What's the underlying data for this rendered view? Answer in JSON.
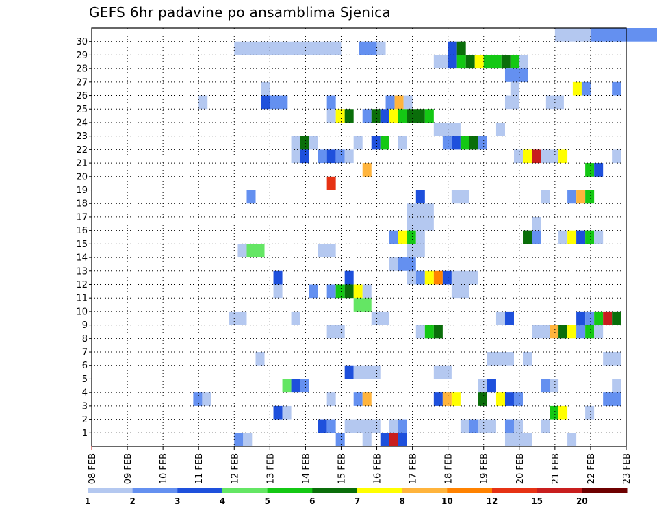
{
  "chart_data": {
    "type": "heatmap",
    "title": "GEFS 6hr padavine po ansamblima Sjenica",
    "xlabel": "",
    "ylabel": "",
    "x_ticks": [
      "08 FEB",
      "09 FEB",
      "10 FEB",
      "11 FEB",
      "12 FEB",
      "13 FEB",
      "14 FEB",
      "15 FEB",
      "16 FEB",
      "17 FEB",
      "18 FEB",
      "19 FEB",
      "20 FEB",
      "21 FEB",
      "22 FEB",
      "23 FEB"
    ],
    "y_ticks": [
      "1",
      "2",
      "3",
      "4",
      "5",
      "6",
      "7",
      "8",
      "9",
      "10",
      "11",
      "12",
      "13",
      "14",
      "15",
      "16",
      "17",
      "18",
      "19",
      "20",
      "21",
      "22",
      "23",
      "24",
      "25",
      "26",
      "27",
      "28",
      "29",
      "30"
    ],
    "members": 31,
    "grid": "dotted",
    "legend_placement": "bottom",
    "legend": {
      "labels": [
        "1",
        "2",
        "3",
        "4",
        "5",
        "6",
        "7",
        "8",
        "10",
        "12",
        "15",
        "20"
      ],
      "colors": [
        "#b4c8f0",
        "#6490f0",
        "#1e50dc",
        "#64e664",
        "#14c814",
        "#0a6e0a",
        "#ffff00",
        "#ffb43c",
        "#ff8200",
        "#e63214",
        "#c81e1e",
        "#6e0000"
      ]
    },
    "cells": [
      [
        30,
        21,
        30,
        22,
        1
      ],
      [
        30,
        22,
        30,
        23,
        2
      ],
      [
        30,
        23,
        30,
        24,
        2
      ],
      [
        30,
        24,
        30,
        25,
        5
      ],
      [
        30,
        25,
        30,
        26,
        5
      ],
      [
        30,
        26,
        30,
        27,
        2
      ],
      [
        30,
        27,
        30,
        28,
        1
      ],
      [
        29,
        12,
        29,
        13,
        1
      ],
      [
        29,
        13,
        29,
        15,
        1
      ],
      [
        29,
        15.5,
        29,
        16,
        2
      ],
      [
        29,
        16,
        29,
        16.25,
        1
      ],
      [
        29,
        18,
        29,
        18.25,
        3
      ],
      [
        29,
        18.25,
        29,
        18.5,
        6
      ],
      [
        28,
        17.6,
        28,
        18,
        1
      ],
      [
        28,
        18,
        28,
        18.25,
        3
      ],
      [
        28,
        18.25,
        28,
        18.5,
        5
      ],
      [
        28,
        18.5,
        28,
        18.75,
        6
      ],
      [
        28,
        18.75,
        28,
        19,
        7
      ],
      [
        28,
        19,
        28,
        19.5,
        5
      ],
      [
        28,
        19.5,
        28,
        19.75,
        6
      ],
      [
        28,
        19.75,
        28,
        20,
        5
      ],
      [
        28,
        20,
        28,
        20.25,
        1
      ],
      [
        27,
        19.6,
        27,
        20.25,
        2
      ],
      [
        26,
        12.75,
        26,
        13,
        1
      ],
      [
        26,
        19.75,
        26,
        20,
        1
      ],
      [
        26,
        21.5,
        26,
        21.75,
        7
      ],
      [
        26,
        21.75,
        26,
        22,
        2
      ],
      [
        26,
        22.6,
        26,
        22.85,
        2
      ],
      [
        25,
        11,
        25,
        11.25,
        1
      ],
      [
        25,
        12.75,
        25,
        13,
        3
      ],
      [
        25,
        13,
        25,
        13.5,
        2
      ],
      [
        25,
        14.6,
        25,
        14.85,
        2
      ],
      [
        25,
        16.25,
        25,
        16.5,
        2
      ],
      [
        25,
        16.5,
        25,
        16.75,
        8
      ],
      [
        25,
        16.75,
        25,
        17,
        1
      ],
      [
        25,
        19.6,
        25,
        20,
        1
      ],
      [
        25,
        20.75,
        25,
        21.25,
        1
      ],
      [
        24,
        14.6,
        24,
        14.85,
        1
      ],
      [
        24,
        14.85,
        24,
        15.1,
        7
      ],
      [
        24,
        15.1,
        24,
        15.35,
        6
      ],
      [
        24,
        15.6,
        24,
        15.85,
        2
      ],
      [
        24,
        15.85,
        24,
        16.1,
        6
      ],
      [
        24,
        16.1,
        24,
        16.35,
        3
      ],
      [
        24,
        16.35,
        24,
        16.6,
        7
      ],
      [
        24,
        16.6,
        24,
        16.85,
        5
      ],
      [
        24,
        16.85,
        24,
        17.35,
        6
      ],
      [
        24,
        17.35,
        24,
        17.6,
        5
      ],
      [
        23,
        17.6,
        23,
        18.35,
        1
      ],
      [
        23,
        19.35,
        23,
        19.6,
        1
      ],
      [
        22,
        13.6,
        22,
        13.85,
        1
      ],
      [
        22,
        13.85,
        22,
        14.1,
        6
      ],
      [
        22,
        14.1,
        22,
        14.35,
        1
      ],
      [
        22,
        15.35,
        22,
        15.6,
        1
      ],
      [
        22,
        15.85,
        22,
        16.1,
        3
      ],
      [
        22,
        16.1,
        22,
        16.35,
        5
      ],
      [
        22,
        16.6,
        22,
        16.85,
        1
      ],
      [
        22,
        17.85,
        22,
        18.1,
        2
      ],
      [
        22,
        18.1,
        22,
        18.35,
        3
      ],
      [
        22,
        18.35,
        22,
        18.6,
        5
      ],
      [
        22,
        18.6,
        22,
        18.85,
        6
      ],
      [
        22,
        18.85,
        22,
        19.1,
        2
      ],
      [
        21,
        13.6,
        21,
        13.85,
        1
      ],
      [
        21,
        13.85,
        21,
        14.1,
        3
      ],
      [
        21,
        14.35,
        21,
        14.6,
        2
      ],
      [
        21,
        14.6,
        21,
        14.85,
        3
      ],
      [
        21,
        14.85,
        21,
        15.1,
        2
      ],
      [
        21,
        15.1,
        21,
        15.35,
        1
      ],
      [
        21,
        19.85,
        21,
        20.1,
        1
      ],
      [
        21,
        20.1,
        21,
        20.35,
        7
      ],
      [
        21,
        20.35,
        21,
        20.6,
        11
      ],
      [
        21,
        20.6,
        21,
        21.1,
        1
      ],
      [
        21,
        21.1,
        21,
        21.35,
        7
      ],
      [
        21,
        22.6,
        21,
        22.85,
        1
      ],
      [
        20,
        15.6,
        20,
        15.85,
        8
      ],
      [
        20,
        21.85,
        20,
        22.1,
        5
      ],
      [
        20,
        22.1,
        20,
        22.35,
        3
      ],
      [
        19,
        14.6,
        19,
        14.85,
        10
      ],
      [
        18,
        12.35,
        18,
        12.6,
        2
      ],
      [
        18,
        17.1,
        18,
        17.35,
        3
      ],
      [
        18,
        18.1,
        18,
        18.6,
        1
      ],
      [
        18,
        20.6,
        18,
        20.85,
        1
      ],
      [
        18,
        21.35,
        18,
        21.6,
        2
      ],
      [
        18,
        21.6,
        18,
        21.85,
        8
      ],
      [
        18,
        21.85,
        18,
        22.1,
        5
      ],
      [
        17,
        16.85,
        17,
        17.6,
        1
      ],
      [
        16,
        16.85,
        16,
        17.6,
        1
      ],
      [
        16,
        20.35,
        16,
        20.6,
        1
      ],
      [
        15,
        16.35,
        15,
        16.6,
        2
      ],
      [
        15,
        16.6,
        15,
        16.85,
        7
      ],
      [
        15,
        16.85,
        15,
        17.1,
        5
      ],
      [
        15,
        17.1,
        15,
        17.35,
        1
      ],
      [
        15,
        20.1,
        15,
        20.35,
        6
      ],
      [
        15,
        20.35,
        15,
        20.6,
        2
      ],
      [
        15,
        21.1,
        15,
        21.35,
        1
      ],
      [
        15,
        21.35,
        15,
        21.6,
        7
      ],
      [
        15,
        21.6,
        15,
        21.85,
        3
      ],
      [
        15,
        21.85,
        15,
        22.1,
        5
      ],
      [
        15,
        22.1,
        15,
        22.35,
        1
      ],
      [
        14,
        12.1,
        14,
        12.35,
        1
      ],
      [
        14,
        12.35,
        14,
        12.85,
        4
      ],
      [
        14,
        14.35,
        14,
        14.85,
        1
      ],
      [
        14,
        16.85,
        14,
        17.35,
        1
      ],
      [
        13,
        16.35,
        13,
        16.6,
        1
      ],
      [
        13,
        16.6,
        13,
        17.1,
        2
      ],
      [
        12,
        13.1,
        12,
        13.35,
        3
      ],
      [
        12,
        15.1,
        12,
        15.35,
        3
      ],
      [
        12,
        16.85,
        12,
        17.1,
        1
      ],
      [
        12,
        17.1,
        12,
        17.35,
        2
      ],
      [
        12,
        17.35,
        12,
        17.6,
        7
      ],
      [
        12,
        17.6,
        12,
        17.85,
        9
      ],
      [
        12,
        17.85,
        12,
        18.1,
        3
      ],
      [
        12,
        18.1,
        12,
        18.85,
        1
      ],
      [
        11,
        13.1,
        11,
        13.35,
        1
      ],
      [
        11,
        14.1,
        11,
        14.35,
        2
      ],
      [
        11,
        14.6,
        11,
        14.85,
        2
      ],
      [
        11,
        14.85,
        11,
        15.1,
        5
      ],
      [
        11,
        15.1,
        11,
        15.35,
        6
      ],
      [
        11,
        15.35,
        11,
        15.6,
        7
      ],
      [
        11,
        15.6,
        11,
        15.85,
        1
      ],
      [
        11,
        18.1,
        11,
        18.6,
        1
      ],
      [
        10,
        15.35,
        10,
        15.85,
        4
      ],
      [
        9,
        11.85,
        9,
        12.35,
        1
      ],
      [
        9,
        13.6,
        9,
        13.85,
        1
      ],
      [
        9,
        15.85,
        9,
        16.35,
        1
      ],
      [
        9,
        19.35,
        9,
        19.6,
        1
      ],
      [
        9,
        19.6,
        9,
        19.85,
        3
      ],
      [
        9,
        21.6,
        9,
        21.85,
        3
      ],
      [
        9,
        21.85,
        9,
        22.1,
        2
      ],
      [
        9,
        22.1,
        9,
        22.35,
        5
      ],
      [
        9,
        22.35,
        9,
        22.6,
        11
      ],
      [
        9,
        22.6,
        9,
        22.85,
        6
      ],
      [
        8,
        14.6,
        8,
        15.1,
        1
      ],
      [
        8,
        17.1,
        8,
        17.35,
        1
      ],
      [
        8,
        17.35,
        8,
        17.6,
        5
      ],
      [
        8,
        17.6,
        8,
        17.85,
        6
      ],
      [
        8,
        20.35,
        8,
        20.85,
        1
      ],
      [
        8,
        20.85,
        8,
        21.1,
        8
      ],
      [
        8,
        21.1,
        8,
        21.35,
        6
      ],
      [
        8,
        21.35,
        8,
        21.6,
        7
      ],
      [
        8,
        21.6,
        8,
        21.85,
        2
      ],
      [
        8,
        21.85,
        8,
        22.1,
        5
      ],
      [
        8,
        22.1,
        8,
        22.35,
        1
      ],
      [
        6,
        12.6,
        6,
        12.85,
        1
      ],
      [
        6,
        19.1,
        6,
        19.85,
        1
      ],
      [
        6,
        20.1,
        6,
        20.35,
        1
      ],
      [
        6,
        22.35,
        6,
        22.85,
        1
      ],
      [
        5,
        15.1,
        5,
        15.35,
        3
      ],
      [
        5,
        15.35,
        5,
        16.1,
        1
      ],
      [
        5,
        17.6,
        5,
        18.1,
        1
      ],
      [
        4,
        13.35,
        4,
        13.6,
        4
      ],
      [
        4,
        13.6,
        4,
        13.85,
        3
      ],
      [
        4,
        13.85,
        4,
        14.1,
        2
      ],
      [
        4,
        18.85,
        4,
        19.1,
        1
      ],
      [
        4,
        19.1,
        4,
        19.35,
        3
      ],
      [
        4,
        20.6,
        4,
        20.85,
        2
      ],
      [
        4,
        20.85,
        4,
        21.1,
        1
      ],
      [
        4,
        22.6,
        4,
        22.85,
        1
      ],
      [
        3,
        10.85,
        3,
        11.1,
        2
      ],
      [
        3,
        11.1,
        3,
        11.35,
        1
      ],
      [
        3,
        14.6,
        3,
        14.85,
        1
      ],
      [
        3,
        15.35,
        3,
        15.6,
        2
      ],
      [
        3,
        15.6,
        3,
        15.85,
        8
      ],
      [
        3,
        17.6,
        3,
        17.85,
        3
      ],
      [
        3,
        17.85,
        3,
        18.1,
        8
      ],
      [
        3,
        18.1,
        3,
        18.35,
        7
      ],
      [
        3,
        18.85,
        3,
        19.1,
        6
      ],
      [
        3,
        19.35,
        3,
        19.6,
        7
      ],
      [
        3,
        19.6,
        3,
        19.85,
        3
      ],
      [
        3,
        19.85,
        3,
        20.1,
        2
      ],
      [
        3,
        22.35,
        3,
        22.85,
        2
      ],
      [
        2,
        13.1,
        2,
        13.35,
        3
      ],
      [
        2,
        13.35,
        2,
        13.6,
        1
      ],
      [
        2,
        20.85,
        2,
        21.1,
        5
      ],
      [
        2,
        21.1,
        2,
        21.35,
        7
      ],
      [
        2,
        21.85,
        2,
        22.1,
        1
      ],
      [
        1,
        14.35,
        1,
        14.6,
        3
      ],
      [
        1,
        14.6,
        1,
        14.85,
        2
      ],
      [
        1,
        15.1,
        1,
        16.1,
        1
      ],
      [
        1,
        16.35,
        1,
        16.6,
        1
      ],
      [
        1,
        16.6,
        1,
        16.85,
        2
      ],
      [
        1,
        18.35,
        1,
        18.6,
        1
      ],
      [
        1,
        18.6,
        1,
        18.85,
        2
      ],
      [
        1,
        18.85,
        1,
        19.35,
        1
      ],
      [
        1,
        19.6,
        1,
        19.85,
        2
      ],
      [
        1,
        19.85,
        1,
        20.1,
        1
      ],
      [
        1,
        20.6,
        1,
        20.85,
        1
      ],
      [
        0,
        12,
        0,
        12.25,
        2
      ],
      [
        0,
        12.25,
        0,
        12.5,
        1
      ],
      [
        0,
        14.85,
        0,
        15.1,
        2
      ],
      [
        0,
        15.6,
        0,
        15.85,
        1
      ],
      [
        0,
        16.1,
        0,
        16.35,
        3
      ],
      [
        0,
        16.35,
        0,
        16.6,
        11
      ],
      [
        0,
        16.6,
        0,
        16.85,
        3
      ],
      [
        0,
        19.6,
        0,
        20.35,
        1
      ],
      [
        0,
        21.35,
        0,
        21.6,
        1
      ]
    ]
  }
}
